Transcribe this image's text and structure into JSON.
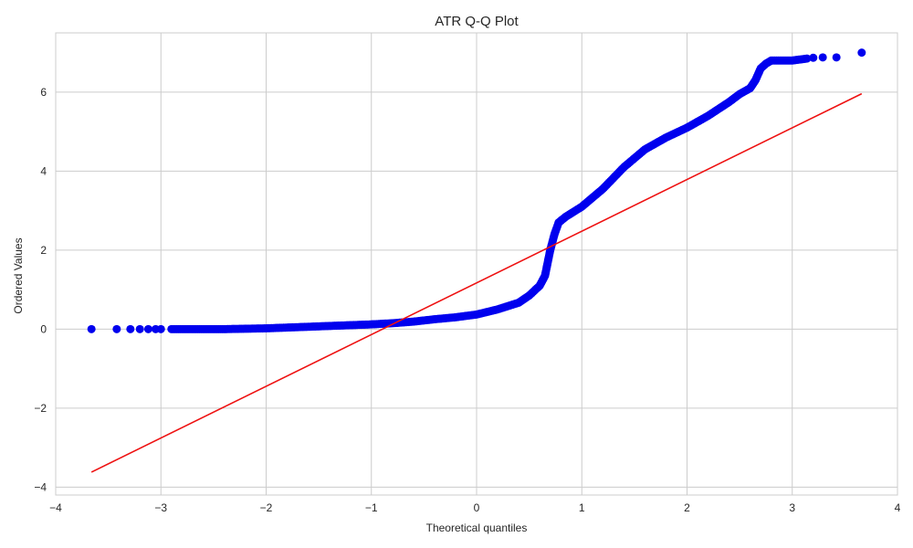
{
  "chart_data": {
    "type": "scatter",
    "title": "ATR Q-Q Plot",
    "xlabel": "Theoretical quantiles",
    "ylabel": "Ordered Values",
    "xlim": [
      -4,
      4
    ],
    "ylim": [
      -4.2,
      7.5
    ],
    "xticks": [
      -4,
      -3,
      -2,
      -1,
      0,
      1,
      2,
      3,
      4
    ],
    "yticks": [
      -4,
      -2,
      0,
      2,
      4,
      6
    ],
    "xtick_labels": [
      "−4",
      "−3",
      "−2",
      "−1",
      "0",
      "1",
      "2",
      "3",
      "4"
    ],
    "ytick_labels": [
      "−4",
      "−2",
      "0",
      "2",
      "4",
      "6"
    ],
    "grid": true,
    "colors": {
      "points": "#0000ee",
      "fit_line": "#ee1111",
      "grid": "#cccccc"
    },
    "series": [
      {
        "kind": "points",
        "x": [
          -3.66,
          -3.42,
          -3.29,
          -3.2,
          -3.12,
          -3.05,
          -3.0,
          -2.9,
          -2.8,
          -2.6,
          -2.4,
          -2.2,
          -2.0,
          -1.8,
          -1.6,
          -1.4,
          -1.2,
          -1.0,
          -0.8,
          -0.6,
          -0.4,
          -0.2,
          0.0,
          0.2,
          0.4,
          0.5,
          0.6,
          0.65,
          0.7,
          0.72,
          0.74,
          0.78,
          0.85,
          1.0,
          1.2,
          1.4,
          1.6,
          1.8,
          2.0,
          2.2,
          2.4,
          2.5,
          2.6,
          2.65,
          2.7,
          2.75,
          2.8,
          2.9,
          3.0,
          3.14,
          3.2,
          3.29,
          3.42,
          3.66
        ],
        "y": [
          0.0,
          0.0,
          0.0,
          0.0,
          0.0,
          0.0,
          0.0,
          0.0,
          0.0,
          0.0,
          0.0,
          0.01,
          0.02,
          0.04,
          0.06,
          0.08,
          0.1,
          0.12,
          0.15,
          0.19,
          0.25,
          0.3,
          0.37,
          0.5,
          0.67,
          0.85,
          1.1,
          1.35,
          2.0,
          2.2,
          2.4,
          2.7,
          2.85,
          3.1,
          3.55,
          4.1,
          4.55,
          4.85,
          5.1,
          5.4,
          5.75,
          5.95,
          6.1,
          6.3,
          6.6,
          6.72,
          6.8,
          6.8,
          6.8,
          6.85,
          6.87,
          6.88,
          6.88,
          7.0
        ]
      },
      {
        "kind": "fit_line",
        "x": [
          -3.66,
          3.66
        ],
        "y": [
          -3.62,
          5.96
        ]
      }
    ]
  }
}
